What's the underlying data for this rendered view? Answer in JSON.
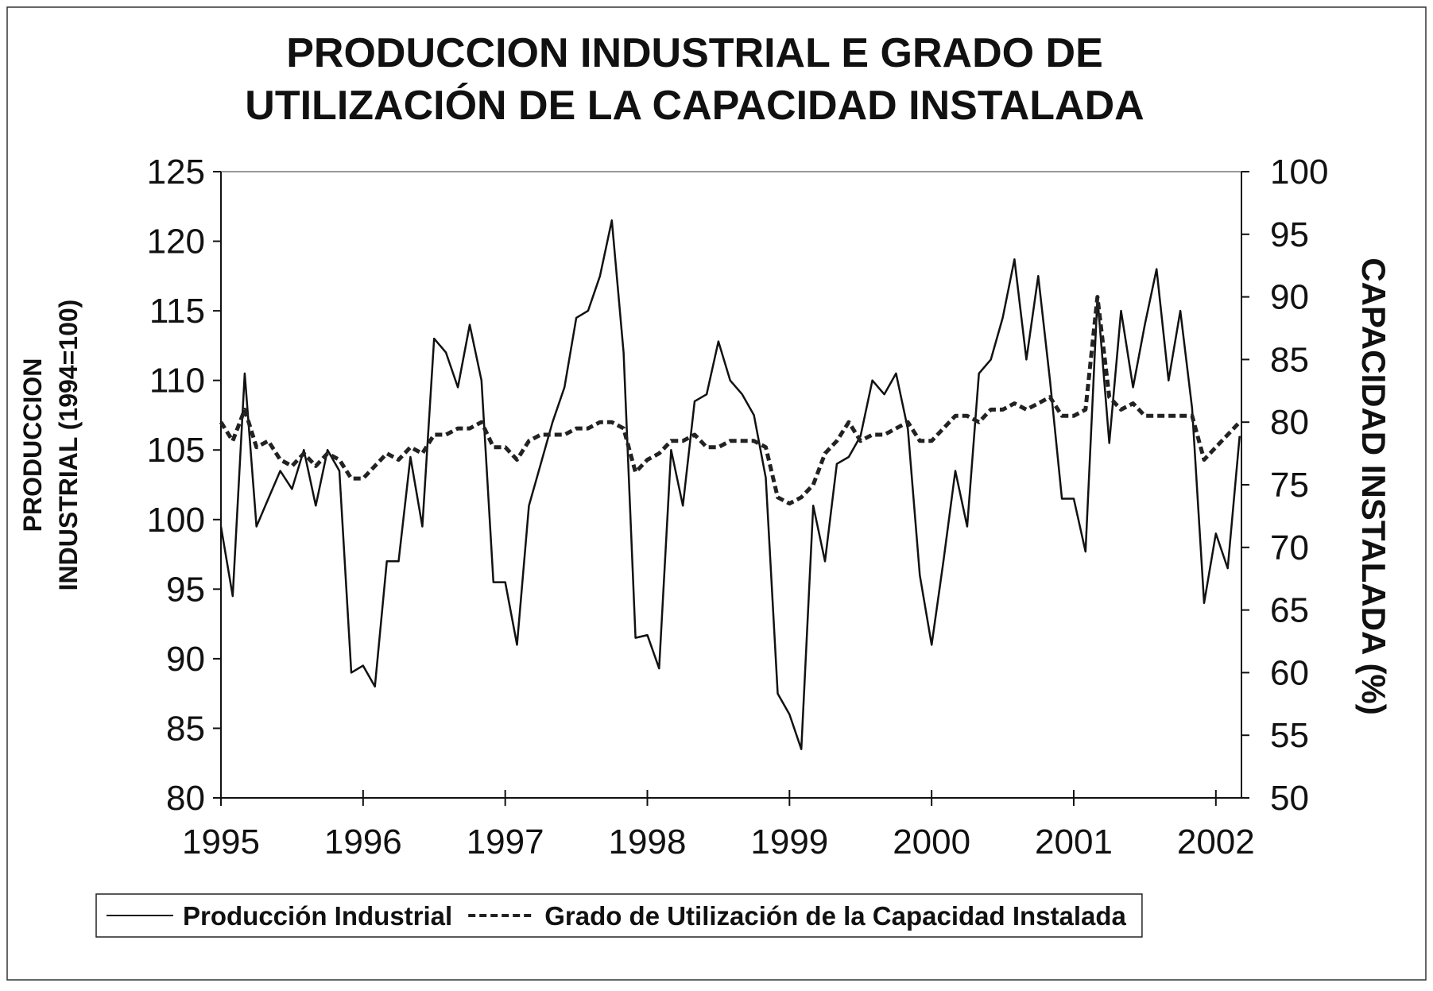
{
  "chart_data": {
    "type": "line",
    "title": [
      "PRODUCCION INDUSTRIAL E GRADO DE",
      "UTILIZACIÓN DE LA CAPACIDAD INSTALADA"
    ],
    "ylabel": [
      "PRODUCCION",
      "INDUSTRIAL (1994=100)"
    ],
    "y2label": "CAPACIDAD INSTALADA (%)",
    "x": [
      1995,
      1995.083,
      1995.167,
      1995.25,
      1995.333,
      1995.417,
      1995.5,
      1995.583,
      1995.667,
      1995.75,
      1995.833,
      1995.917,
      1996,
      1996.083,
      1996.167,
      1996.25,
      1996.333,
      1996.417,
      1996.5,
      1996.583,
      1996.667,
      1996.75,
      1996.833,
      1996.917,
      1997,
      1997.083,
      1997.167,
      1997.25,
      1997.333,
      1997.417,
      1997.5,
      1997.583,
      1997.667,
      1997.75,
      1997.833,
      1997.917,
      1998,
      1998.083,
      1998.167,
      1998.25,
      1998.333,
      1998.417,
      1998.5,
      1998.583,
      1998.667,
      1998.75,
      1998.833,
      1998.917,
      1999,
      1999.083,
      1999.167,
      1999.25,
      1999.333,
      1999.417,
      1999.5,
      1999.583,
      1999.667,
      1999.75,
      1999.833,
      1999.917,
      2000,
      2000.083,
      2000.167,
      2000.25,
      2000.333,
      2000.417,
      2000.5,
      2000.583,
      2000.667,
      2000.75,
      2000.833,
      2000.917,
      2001,
      2001.083,
      2001.167,
      2001.25,
      2001.333,
      2001.417,
      2001.5,
      2001.583,
      2001.667,
      2001.75,
      2001.833,
      2001.917,
      2002,
      2002.083,
      2002.167
    ],
    "series": [
      {
        "name": "Producción Industrial",
        "color": "#111111",
        "linestyle": "solid",
        "axis": "y",
        "values": [
          99.5,
          94.5,
          110.5,
          99.5,
          101.5,
          103.5,
          102.2,
          105,
          101,
          105,
          103.5,
          89,
          89.5,
          88,
          97,
          97,
          104.5,
          99.5,
          113,
          112,
          109.5,
          114,
          110,
          95.5,
          95.5,
          91,
          101,
          104,
          107,
          109.5,
          114.5,
          115,
          117.5,
          121.5,
          112,
          91.5,
          91.7,
          89.3,
          105,
          101,
          108.5,
          109,
          112.8,
          110,
          109,
          107.5,
          103,
          87.5,
          86,
          83.5,
          101,
          97,
          104,
          104.5,
          106,
          110,
          109,
          110.5,
          106.5,
          96,
          91,
          97,
          103.5,
          99.5,
          110.5,
          111.5,
          114.5,
          118.7,
          111.5,
          117.5,
          110,
          101.5,
          101.5,
          97.7,
          116,
          105.5,
          115,
          109.5,
          114,
          118,
          110,
          115,
          108,
          94,
          99,
          96.5,
          106
        ]
      },
      {
        "name": "Grado de Utilización de la Capacidad Instalada",
        "color": "#222222",
        "linestyle": "dashed",
        "axis": "y2",
        "values": [
          80,
          78.5,
          81,
          78,
          78.5,
          77,
          76.5,
          77.5,
          76.5,
          77.5,
          77,
          75.5,
          75.5,
          76.5,
          77.5,
          77,
          78,
          77.5,
          79,
          79,
          79.5,
          79.5,
          80,
          78,
          78,
          77,
          78.5,
          79,
          79,
          79,
          79.5,
          79.5,
          80,
          80,
          79.5,
          76,
          77,
          77.5,
          78.5,
          78.5,
          79,
          78,
          78,
          78.5,
          78.5,
          78.5,
          78,
          74,
          73.5,
          74,
          75,
          77.5,
          78.5,
          80,
          78.5,
          79,
          79,
          79.5,
          80,
          78.5,
          78.5,
          79.5,
          80.5,
          80.5,
          80,
          81,
          81,
          81.5,
          81,
          81.5,
          82,
          80.5,
          80.5,
          81,
          90,
          82,
          81,
          81.5,
          80.5,
          80.5,
          80.5,
          80.5,
          80.5,
          77,
          78,
          79,
          80
        ]
      }
    ],
    "xlim": [
      1995,
      2002.18
    ],
    "xticks": [
      1995,
      1996,
      1997,
      1998,
      1999,
      2000,
      2001,
      2002
    ],
    "ylim": [
      80,
      125
    ],
    "yticks": [
      80,
      85,
      90,
      95,
      100,
      105,
      110,
      115,
      120,
      125
    ],
    "y2lim": [
      50,
      100
    ],
    "y2ticks": [
      50,
      55,
      60,
      65,
      70,
      75,
      80,
      85,
      90,
      95,
      100
    ],
    "grid": false,
    "legend": "bottom"
  }
}
